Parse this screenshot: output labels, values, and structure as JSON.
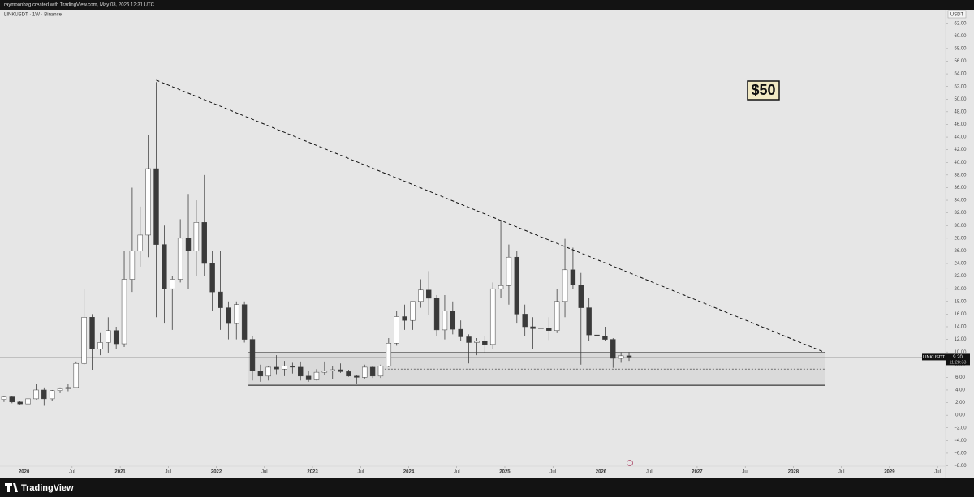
{
  "header": "raymoonbag created with TradingView.com, May 03, 2026 12:31 UTC",
  "footer": "TradingView",
  "chart_data": {
    "type": "candlestick",
    "title": "LINKUSDT · 1W · Binance",
    "currency": "USDT",
    "symbol_tag": "LINKUSDT",
    "last_price": {
      "value": 9.2,
      "label": "9.20"
    },
    "countdown": "11:28:33",
    "annotation": "$50",
    "up_color": "#ffffff",
    "down_color": "#3a3a3a",
    "wick_color": "#404040",
    "x": [
      "2019-10",
      "2019-11",
      "2019-12",
      "2020-01",
      "2020-02",
      "2020-03",
      "2020-04",
      "2020-05",
      "2020-06",
      "2020-07",
      "2020-08",
      "2020-09",
      "2020-10",
      "2020-11",
      "2020-12",
      "2021-01",
      "2021-02",
      "2021-03",
      "2021-04",
      "2021-05",
      "2021-06",
      "2021-07",
      "2021-08",
      "2021-09",
      "2021-10",
      "2021-11",
      "2021-12",
      "2022-01",
      "2022-02",
      "2022-03",
      "2022-04",
      "2022-05",
      "2022-06",
      "2022-07",
      "2022-08",
      "2022-09",
      "2022-10",
      "2022-11",
      "2022-12",
      "2023-01",
      "2023-02",
      "2023-03",
      "2023-04",
      "2023-05",
      "2023-06",
      "2023-07",
      "2023-08",
      "2023-09",
      "2023-10",
      "2023-11",
      "2023-12",
      "2024-01",
      "2024-02",
      "2024-03",
      "2024-04",
      "2024-05",
      "2024-06",
      "2024-07",
      "2024-08",
      "2024-09",
      "2024-10",
      "2024-11",
      "2024-12",
      "2025-01",
      "2025-02",
      "2025-03",
      "2025-04",
      "2025-05",
      "2025-06",
      "2025-07",
      "2025-08",
      "2025-09",
      "2025-10",
      "2025-11",
      "2025-12",
      "2026-01",
      "2026-02",
      "2026-03",
      "2026-04"
    ],
    "open": [
      2.5,
      2.9,
      2.1,
      1.8,
      2.6,
      4.0,
      2.6,
      3.9,
      4.2,
      4.4,
      8.2,
      15.5,
      10.5,
      11.5,
      13.4,
      11.3,
      21.5,
      26,
      28.5,
      39,
      27,
      20,
      21.5,
      28,
      26,
      30.5,
      24,
      19.5,
      17,
      14.5,
      17.5,
      12,
      7,
      6.2,
      7.6,
      7.3,
      7.8,
      7.6,
      6.2,
      5.6,
      6.8,
      7.0,
      7.2,
      6.9,
      6.2,
      6.0,
      7.6,
      6.2,
      7.8,
      11.4,
      15.6,
      15,
      18,
      19.8,
      18.5,
      13.5,
      16.5,
      13.6,
      12.4,
      11.5,
      11.7,
      11.2,
      20,
      20.5,
      25,
      16,
      14,
      13.7,
      13.8,
      13.4,
      18,
      23,
      20.6,
      17,
      12.7,
      12.5,
      12,
      9,
      9.4
    ],
    "high": [
      3.0,
      3.0,
      2.2,
      2.7,
      4.9,
      4.4,
      4.0,
      4.4,
      4.9,
      8.5,
      20,
      16,
      13,
      15.5,
      14,
      26,
      36,
      33,
      44.3,
      52.7,
      30,
      22,
      31,
      35,
      34,
      38,
      26,
      26,
      18,
      18,
      18,
      12.5,
      8,
      7.8,
      9.5,
      8.6,
      8.3,
      8.5,
      7,
      7.3,
      8.5,
      7.8,
      8.2,
      7.2,
      6.4,
      8.0,
      7.8,
      8.0,
      12.2,
      16.5,
      17.5,
      18,
      21.5,
      22.8,
      19,
      19,
      18,
      15,
      12.8,
      12.2,
      12.5,
      21,
      30.9,
      27,
      26,
      17.5,
      15.5,
      17.8,
      15.5,
      20,
      27.9,
      26.5,
      22.5,
      18.5,
      14.8,
      14,
      12.2,
      10,
      10
    ],
    "low": [
      2.1,
      1.9,
      1.7,
      1.8,
      2.5,
      1.5,
      2.3,
      3.5,
      3.8,
      4.3,
      8,
      7.2,
      9.5,
      9.9,
      10.5,
      10.8,
      19.5,
      23.5,
      25,
      15.5,
      14.5,
      13.5,
      21,
      20,
      22,
      22,
      16.5,
      13.5,
      12,
      12,
      11.5,
      5.5,
      5.3,
      5.5,
      6.5,
      6.2,
      6.6,
      5.5,
      5.3,
      5.5,
      6.3,
      5.7,
      6.7,
      6.1,
      4.9,
      5.8,
      5.9,
      5.9,
      7.6,
      11,
      13.5,
      13.5,
      17,
      15.9,
      12.5,
      12,
      12.8,
      11.8,
      8.2,
      9.5,
      9.8,
      10.5,
      18.5,
      17.5,
      14.5,
      12.5,
      10.5,
      13,
      11.9,
      13,
      15.5,
      20,
      8.0,
      11.8,
      11.5,
      11.8,
      7.5,
      8.3,
      8.6
    ],
    "close": [
      2.9,
      2.1,
      1.8,
      2.6,
      4.0,
      2.6,
      3.9,
      4.2,
      4.4,
      8.2,
      15.5,
      10.5,
      11.5,
      13.4,
      11.3,
      21.5,
      26,
      28.5,
      39,
      27,
      20,
      21.5,
      28,
      26,
      30.5,
      24,
      19.5,
      17,
      14.5,
      17.5,
      12,
      7,
      6.2,
      7.6,
      7.3,
      7.8,
      7.6,
      6.2,
      5.6,
      6.8,
      7.0,
      7.2,
      6.9,
      6.2,
      6.0,
      7.6,
      6.2,
      7.8,
      11.4,
      15.6,
      15,
      18,
      19.8,
      18.5,
      13.5,
      16.5,
      13.6,
      12.4,
      11.5,
      11.7,
      11.2,
      20,
      20.5,
      25,
      16,
      14,
      13.7,
      13.8,
      13.4,
      18,
      23,
      20.6,
      17,
      12.7,
      12.5,
      12,
      9,
      9.4,
      9.2
    ],
    "trendline": {
      "x": [
        "2021-05",
        "2028-05"
      ],
      "y": [
        53.0,
        9.9
      ]
    },
    "range_box": {
      "x": [
        "2022-05",
        "2028-05"
      ],
      "top": 9.9,
      "bottom": 4.75,
      "mid": 7.3,
      "mid_start": "2023-10"
    },
    "xlim": [
      "2019-10",
      "2029-08"
    ],
    "ylim": [
      -8.7,
      63.5
    ],
    "xticks": [
      {
        "value": "2020-01",
        "label": "2020"
      },
      {
        "value": "2020-07",
        "label": "Jul"
      },
      {
        "value": "2021-01",
        "label": "2021"
      },
      {
        "value": "2021-07",
        "label": "Jul"
      },
      {
        "value": "2022-01",
        "label": "2022"
      },
      {
        "value": "2022-07",
        "label": "Jul"
      },
      {
        "value": "2023-01",
        "label": "2023"
      },
      {
        "value": "2023-07",
        "label": "Jul"
      },
      {
        "value": "2024-01",
        "label": "2024"
      },
      {
        "value": "2024-07",
        "label": "Jul"
      },
      {
        "value": "2025-01",
        "label": "2025"
      },
      {
        "value": "2025-07",
        "label": "Jul"
      },
      {
        "value": "2026-01",
        "label": "2026"
      },
      {
        "value": "2026-07",
        "label": "Jul"
      },
      {
        "value": "2027-01",
        "label": "2027"
      },
      {
        "value": "2027-07",
        "label": "Jul"
      },
      {
        "value": "2028-01",
        "label": "2028"
      },
      {
        "value": "2028-07",
        "label": "Jul"
      },
      {
        "value": "2029-01",
        "label": "2029"
      },
      {
        "value": "2029-07",
        "label": "Jul"
      }
    ],
    "yticks": [
      {
        "value": 62,
        "label": "62.00"
      },
      {
        "value": 60,
        "label": "60.00"
      },
      {
        "value": 58,
        "label": "58.00"
      },
      {
        "value": 56,
        "label": "56.00"
      },
      {
        "value": 54,
        "label": "54.00"
      },
      {
        "value": 52,
        "label": "52.00"
      },
      {
        "value": 50,
        "label": "50.00"
      },
      {
        "value": 48,
        "label": "48.00"
      },
      {
        "value": 46,
        "label": "46.00"
      },
      {
        "value": 44,
        "label": "44.00"
      },
      {
        "value": 42,
        "label": "42.00"
      },
      {
        "value": 40,
        "label": "40.00"
      },
      {
        "value": 38,
        "label": "38.00"
      },
      {
        "value": 36,
        "label": "36.00"
      },
      {
        "value": 34,
        "label": "34.00"
      },
      {
        "value": 32,
        "label": "32.00"
      },
      {
        "value": 30,
        "label": "30.00"
      },
      {
        "value": 28,
        "label": "28.00"
      },
      {
        "value": 26,
        "label": "26.00"
      },
      {
        "value": 24,
        "label": "24.00"
      },
      {
        "value": 22,
        "label": "22.00"
      },
      {
        "value": 20,
        "label": "20.00"
      },
      {
        "value": 18,
        "label": "18.00"
      },
      {
        "value": 16,
        "label": "16.00"
      },
      {
        "value": 14,
        "label": "14.00"
      },
      {
        "value": 12,
        "label": "12.00"
      },
      {
        "value": 10,
        "label": "10.00"
      },
      {
        "value": 8,
        "label": "8.00"
      },
      {
        "value": 6,
        "label": "6.00"
      },
      {
        "value": 4,
        "label": "4.00"
      },
      {
        "value": 2,
        "label": "2.00"
      },
      {
        "value": 0,
        "label": "0.00"
      },
      {
        "value": -2,
        "label": "−2.00"
      },
      {
        "value": -4,
        "label": "−4.00"
      },
      {
        "value": -6,
        "label": "−6.00"
      },
      {
        "value": -8,
        "label": "−8.00"
      }
    ]
  }
}
